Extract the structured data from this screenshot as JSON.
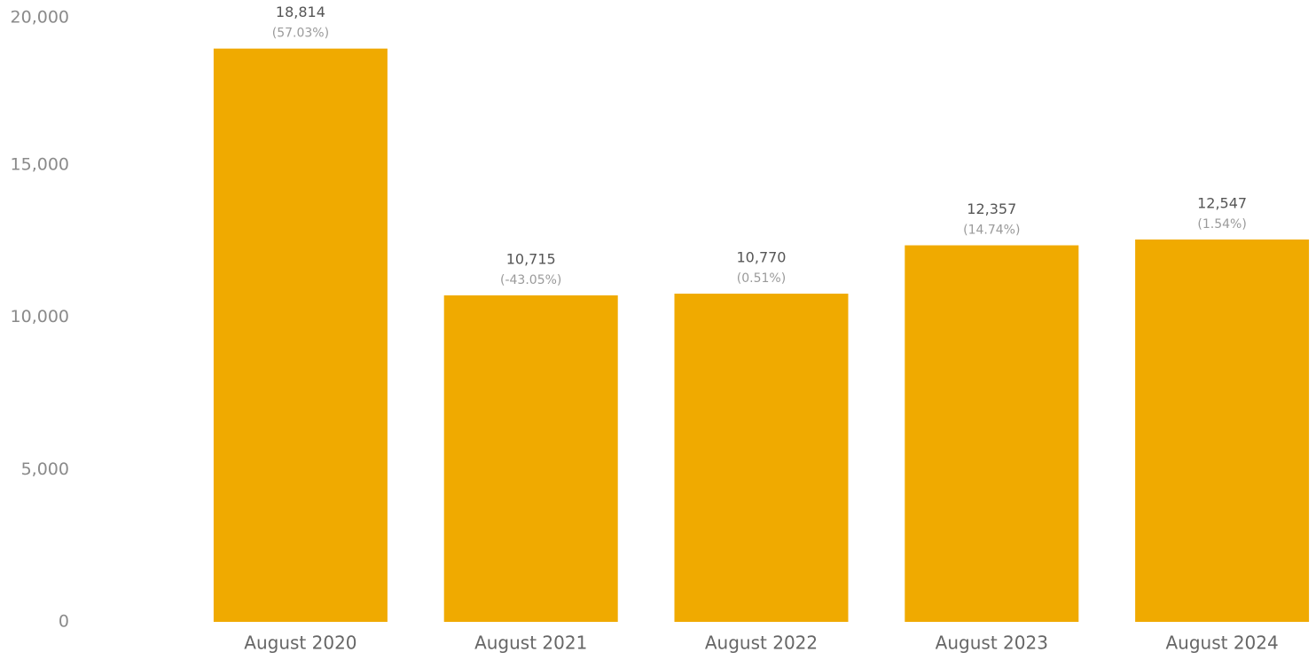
{
  "chart_data": {
    "type": "bar",
    "categories": [
      "August 2020",
      "August 2021",
      "August 2022",
      "August 2023",
      "August 2024"
    ],
    "values": [
      18814,
      10715,
      10770,
      12357,
      12547
    ],
    "value_labels": [
      "18,814",
      "10,715",
      "10,770",
      "12,357",
      "12,547"
    ],
    "secondary_labels": [
      "(57.03%)",
      "(-43.05%)",
      "(0.51%)",
      "(14.74%)",
      "(1.54%)"
    ],
    "color": "#f0aa00",
    "ylim": [
      0,
      20000
    ],
    "yticks": [
      0,
      {
        "value": 5000,
        "label": "5,000"
      },
      {
        "value": 10000,
        "label": "10,000"
      },
      {
        "value": 15000,
        "label": "15,000"
      },
      {
        "value": 20000,
        "label": "20,000"
      }
    ],
    "grid": false
  }
}
